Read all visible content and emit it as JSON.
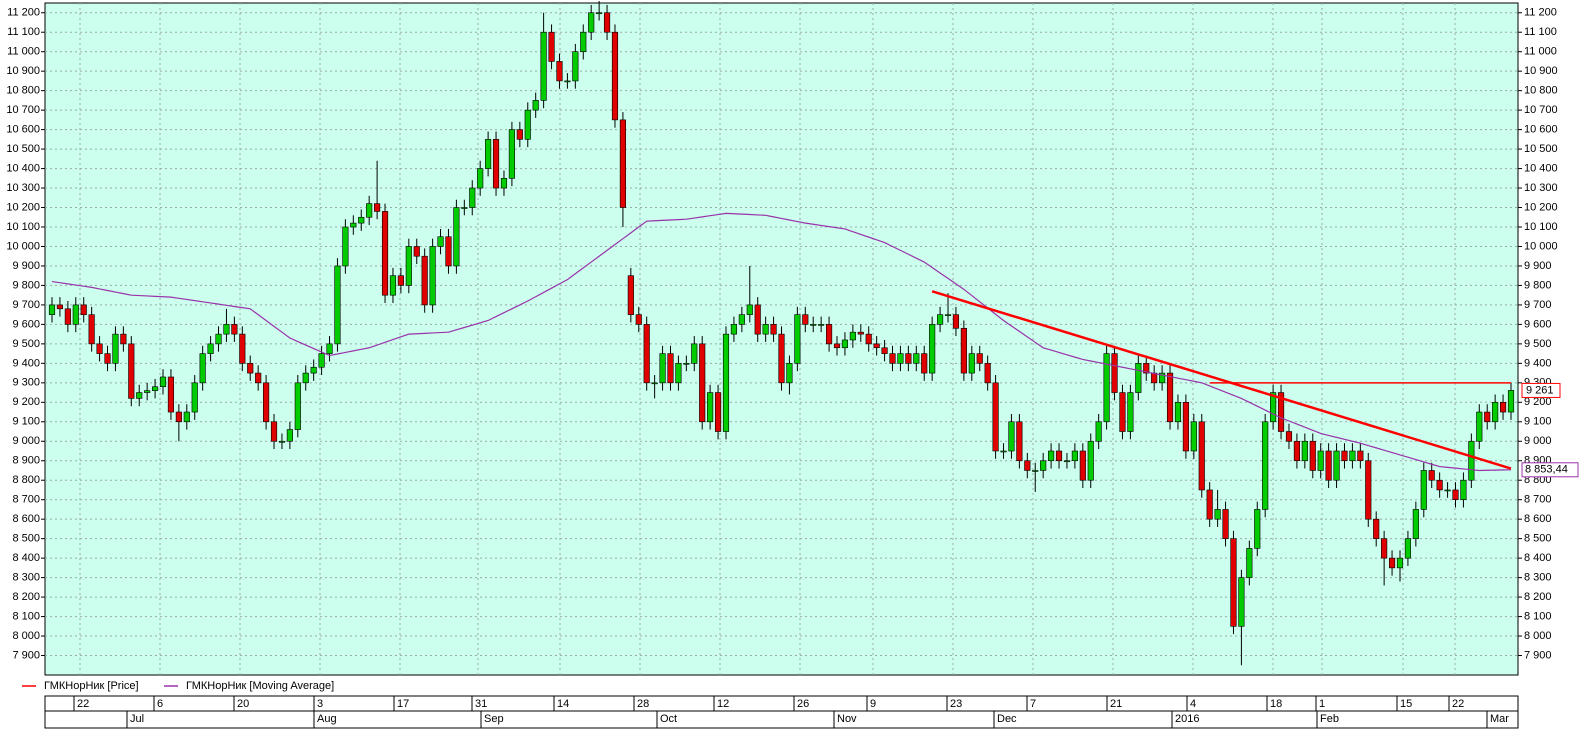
{
  "chart_data": {
    "type": "candlestick",
    "series": [
      {
        "name": "ГМКНорНик [Price]",
        "color": "#ff0000",
        "up_color": "#00cc00",
        "down_color": "#e00000",
        "last_label": "9 261",
        "open": [
          9650,
          9700,
          9680,
          9600,
          9700,
          9650,
          9500,
          9450,
          9400,
          9550,
          9500,
          9220,
          9250,
          9260,
          9280,
          9330,
          9150,
          9100,
          9150,
          9300,
          9450,
          9500,
          9550,
          9600,
          9550,
          9400,
          9350,
          9300,
          9100,
          9000,
          9000,
          9060,
          9300,
          9350,
          9380,
          9450,
          9500,
          9900,
          10100,
          10120,
          10150,
          10220,
          10180,
          9750,
          9850,
          9800,
          10000,
          9950,
          9700,
          10000,
          10050,
          9900,
          10200,
          10200,
          10300,
          10400,
          10550,
          10300,
          10350,
          10600,
          10550,
          10700,
          10750,
          11100,
          10950,
          10850,
          10850,
          11000,
          11100,
          11200,
          11200,
          11100,
          10650,
          9850,
          9650,
          9600,
          9300,
          9300,
          9450,
          9300,
          9400,
          9400,
          9500,
          9100,
          9250,
          9050,
          9550,
          9600,
          9650,
          9700,
          9550,
          9600,
          9550,
          9300,
          9400,
          9650,
          9600,
          9600,
          9600,
          9500,
          9480,
          9520,
          9560,
          9550,
          9500,
          9480,
          9450,
          9400,
          9450,
          9400,
          9450,
          9350,
          9600,
          9650,
          9650,
          9580,
          9350,
          9450,
          9400,
          9300,
          8950,
          8950,
          9100,
          8900,
          8850,
          8850,
          8900,
          8950,
          8900,
          8900,
          8950,
          8800,
          9000,
          9100,
          9450,
          9250,
          9050,
          9250,
          9400,
          9350,
          9300,
          9350,
          9100,
          9200,
          8950,
          9100,
          8750,
          8600,
          8650,
          8500,
          8050,
          8300,
          8450,
          8650,
          9100,
          9250,
          9050,
          9000,
          8900,
          9000,
          8850,
          8950,
          8800,
          8950,
          8900,
          8950,
          8900,
          8600,
          8500,
          8400,
          8350,
          8400,
          8500,
          8650,
          8850,
          8800,
          8750,
          8750,
          8700,
          8800,
          9000,
          9150,
          9100,
          9200,
          9150
        ],
        "high": [
          9740,
          9740,
          9720,
          9740,
          9740,
          9690,
          9540,
          9490,
          9590,
          9590,
          9540,
          9290,
          9300,
          9320,
          9370,
          9370,
          9190,
          9190,
          9340,
          9490,
          9540,
          9590,
          9680,
          9640,
          9590,
          9440,
          9390,
          9340,
          9140,
          9040,
          9100,
          9340,
          9390,
          9420,
          9490,
          9540,
          9940,
          10140,
          10160,
          10190,
          10260,
          10440,
          10220,
          9890,
          9890,
          10040,
          10040,
          9990,
          10040,
          10090,
          10090,
          10240,
          10240,
          10340,
          10440,
          10590,
          10590,
          10390,
          10640,
          10640,
          10740,
          10790,
          11200,
          11140,
          10990,
          10890,
          11040,
          11140,
          11240,
          11260,
          11240,
          11140,
          10690,
          9890,
          9690,
          9640,
          9340,
          9490,
          9490,
          9440,
          9440,
          9540,
          9540,
          9290,
          9290,
          9590,
          9640,
          9690,
          9900,
          9740,
          9640,
          9640,
          9590,
          9440,
          9690,
          9690,
          9640,
          9640,
          9640,
          9540,
          9560,
          9600,
          9600,
          9590,
          9540,
          9520,
          9490,
          9490,
          9490,
          9490,
          9490,
          9640,
          9690,
          9760,
          9690,
          9620,
          9490,
          9490,
          9440,
          9340,
          8990,
          9140,
          9140,
          8940,
          8890,
          8940,
          8990,
          8990,
          8940,
          8990,
          8990,
          9040,
          9140,
          9490,
          9490,
          9290,
          9290,
          9440,
          9440,
          9390,
          9390,
          9390,
          9240,
          9240,
          9140,
          9140,
          8790,
          8750,
          8690,
          8540,
          8340,
          8490,
          8690,
          9140,
          9290,
          9290,
          9090,
          9040,
          9040,
          9040,
          8990,
          8990,
          8990,
          8990,
          8990,
          8990,
          8940,
          8640,
          8540,
          8440,
          8440,
          8540,
          8690,
          8890,
          8890,
          8840,
          8790,
          8790,
          8840,
          9040,
          9190,
          9190,
          9240,
          9240,
          9300
        ],
        "low": [
          9610,
          9640,
          9560,
          9560,
          9610,
          9460,
          9410,
          9360,
          9360,
          9460,
          9180,
          9180,
          9210,
          9220,
          9240,
          9110,
          9000,
          9060,
          9110,
          9260,
          9410,
          9460,
          9510,
          9510,
          9360,
          9310,
          9260,
          9060,
          8960,
          8960,
          8960,
          9020,
          9260,
          9310,
          9340,
          9410,
          9460,
          9860,
          10060,
          10080,
          10110,
          10140,
          9710,
          9710,
          9760,
          9760,
          9910,
          9660,
          9660,
          9960,
          9860,
          9860,
          10160,
          10160,
          10260,
          10360,
          10260,
          10260,
          10310,
          10510,
          10510,
          10660,
          10710,
          10910,
          10810,
          10810,
          10810,
          10960,
          11060,
          11160,
          11060,
          10610,
          10100,
          9610,
          9560,
          9260,
          9220,
          9260,
          9260,
          9260,
          9360,
          9360,
          9060,
          9060,
          9010,
          9010,
          9510,
          9560,
          9610,
          9510,
          9510,
          9510,
          9260,
          9240,
          9360,
          9560,
          9560,
          9560,
          9460,
          9440,
          9440,
          9480,
          9510,
          9460,
          9440,
          9410,
          9360,
          9360,
          9360,
          9360,
          9310,
          9310,
          9560,
          9610,
          9540,
          9310,
          9310,
          9360,
          9260,
          8910,
          8910,
          8910,
          8860,
          8810,
          8740,
          8810,
          8860,
          8860,
          8860,
          8860,
          8760,
          8760,
          8960,
          9060,
          9210,
          9010,
          9010,
          9210,
          9310,
          9260,
          9260,
          9060,
          9060,
          8910,
          8910,
          8710,
          8560,
          8560,
          8460,
          8010,
          7850,
          8260,
          8410,
          8610,
          9060,
          9010,
          8960,
          8860,
          8860,
          8810,
          8810,
          8760,
          8760,
          8860,
          8860,
          8860,
          8560,
          8460,
          8260,
          8310,
          8280,
          8360,
          8460,
          8610,
          8760,
          8710,
          8710,
          8660,
          8660,
          8760,
          8960,
          9060,
          9060,
          9110,
          9110
        ],
        "close": [
          9700,
          9680,
          9600,
          9700,
          9650,
          9500,
          9450,
          9400,
          9550,
          9500,
          9220,
          9250,
          9260,
          9280,
          9330,
          9150,
          9100,
          9150,
          9300,
          9450,
          9500,
          9550,
          9600,
          9550,
          9400,
          9350,
          9300,
          9100,
          9000,
          9000,
          9060,
          9300,
          9350,
          9380,
          9450,
          9500,
          9900,
          10100,
          10120,
          10150,
          10220,
          10180,
          9750,
          9850,
          9800,
          10000,
          9950,
          9700,
          10000,
          10050,
          9900,
          10200,
          10200,
          10300,
          10400,
          10550,
          10300,
          10350,
          10600,
          10550,
          10700,
          10750,
          11100,
          10950,
          10850,
          10850,
          11000,
          11100,
          11200,
          11200,
          11100,
          10650,
          10200,
          9650,
          9600,
          9300,
          9300,
          9450,
          9300,
          9400,
          9400,
          9500,
          9100,
          9250,
          9050,
          9550,
          9600,
          9650,
          9700,
          9550,
          9600,
          9550,
          9300,
          9400,
          9650,
          9600,
          9600,
          9600,
          9500,
          9480,
          9520,
          9560,
          9550,
          9500,
          9480,
          9450,
          9400,
          9450,
          9400,
          9450,
          9350,
          9600,
          9650,
          9650,
          9580,
          9350,
          9450,
          9400,
          9300,
          8950,
          8950,
          9100,
          8900,
          8850,
          8850,
          8900,
          8950,
          8900,
          8900,
          8950,
          8800,
          9000,
          9100,
          9450,
          9250,
          9050,
          9250,
          9400,
          9350,
          9300,
          9350,
          9100,
          9200,
          8950,
          9100,
          8750,
          8600,
          8650,
          8500,
          8050,
          8300,
          8450,
          8650,
          9100,
          9250,
          9050,
          9000,
          8900,
          9000,
          8850,
          8950,
          8800,
          8950,
          8900,
          8950,
          8900,
          8600,
          8500,
          8400,
          8350,
          8400,
          8500,
          8650,
          8850,
          8800,
          8750,
          8750,
          8700,
          8800,
          9000,
          9150,
          9100,
          9200,
          9150,
          9261
        ]
      },
      {
        "name": "ГМКНорНик [Moving Average]",
        "color": "#9933aa",
        "last_label": "8 853,44",
        "values": [
          9820,
          9814,
          9808,
          9802,
          9796,
          9790,
          9782,
          9774,
          9766,
          9758,
          9750,
          9748,
          9746,
          9744,
          9742,
          9740,
          9734,
          9728,
          9722,
          9716,
          9710,
          9704,
          9698,
          9692,
          9686,
          9680,
          9650,
          9620,
          9590,
          9560,
          9530,
          9512,
          9494,
          9476,
          9458,
          9440,
          9448,
          9456,
          9464,
          9472,
          9480,
          9494,
          9508,
          9522,
          9536,
          9550,
          9552,
          9554,
          9556,
          9558,
          9560,
          9572,
          9584,
          9596,
          9608,
          9620,
          9640,
          9660,
          9680,
          9700,
          9720,
          9742,
          9764,
          9786,
          9808,
          9830,
          9860,
          9890,
          9920,
          9950,
          9980,
          10010,
          10040,
          10070,
          10100,
          10130,
          10132,
          10134,
          10136,
          10138,
          10140,
          10146,
          10152,
          10158,
          10164,
          10170,
          10168,
          10166,
          10164,
          10162,
          10160,
          10152,
          10144,
          10136,
          10128,
          10120,
          10114,
          10108,
          10102,
          10096,
          10090,
          10076,
          10062,
          10048,
          10034,
          10020,
          10000,
          9980,
          9960,
          9940,
          9920,
          9892,
          9864,
          9836,
          9808,
          9780,
          9748,
          9716,
          9684,
          9652,
          9620,
          9592,
          9564,
          9536,
          9508,
          9480,
          9468,
          9456,
          9444,
          9432,
          9420,
          9412,
          9404,
          9396,
          9388,
          9380,
          9372,
          9364,
          9356,
          9348,
          9340,
          9332,
          9324,
          9316,
          9308,
          9300,
          9284,
          9268,
          9252,
          9236,
          9220,
          9200,
          9180,
          9160,
          9140,
          9120,
          9104,
          9088,
          9072,
          9056,
          9040,
          9030,
          9020,
          9010,
          9000,
          8990,
          8978,
          8966,
          8954,
          8942,
          8930,
          8918,
          8906,
          8894,
          8882,
          8870,
          8866,
          8862,
          8858,
          8854,
          8850,
          8851,
          8852,
          8853,
          8853.44
        ]
      }
    ],
    "trendlines": [
      {
        "color": "#ff0000",
        "x": [
          111,
          184
        ],
        "values": [
          9770,
          8860
        ]
      },
      {
        "color": "#ff0000",
        "x": [
          146,
          184
        ],
        "values": [
          9300,
          9300
        ]
      }
    ],
    "x_day_labels": [
      "22",
      "6",
      "20",
      "3",
      "17",
      "31",
      "14",
      "28",
      "12",
      "26",
      "9",
      "23",
      "7",
      "21",
      "4",
      "18",
      "1",
      "15",
      "22"
    ],
    "x_month_labels": [
      "Jul",
      "Aug",
      "Sep",
      "Oct",
      "Nov",
      "Dec",
      "2016",
      "Feb",
      "Mar"
    ],
    "ylim": [
      7800,
      11250
    ],
    "yticks": [
      {
        "value": 7900,
        "label": "7 900"
      },
      {
        "value": 8000,
        "label": "8 000"
      },
      {
        "value": 8100,
        "label": "8 100"
      },
      {
        "value": 8200,
        "label": "8 200"
      },
      {
        "value": 8300,
        "label": "8 300"
      },
      {
        "value": 8400,
        "label": "8 400"
      },
      {
        "value": 8500,
        "label": "8 500"
      },
      {
        "value": 8600,
        "label": "8 600"
      },
      {
        "value": 8700,
        "label": "8 700"
      },
      {
        "value": 8800,
        "label": "8 800"
      },
      {
        "value": 8900,
        "label": "8 900"
      },
      {
        "value": 9000,
        "label": "9 000"
      },
      {
        "value": 9100,
        "label": "9 100"
      },
      {
        "value": 9200,
        "label": "9 200"
      },
      {
        "value": 9300,
        "label": "9 300"
      },
      {
        "value": 9400,
        "label": "9 400"
      },
      {
        "value": 9500,
        "label": "9 500"
      },
      {
        "value": 9600,
        "label": "9 600"
      },
      {
        "value": 9700,
        "label": "9 700"
      },
      {
        "value": 9800,
        "label": "9 800"
      },
      {
        "value": 9900,
        "label": "9 900"
      },
      {
        "value": 10000,
        "label": "10 000"
      },
      {
        "value": 10100,
        "label": "10 100"
      },
      {
        "value": 10200,
        "label": "10 200"
      },
      {
        "value": 10300,
        "label": "10 300"
      },
      {
        "value": 10400,
        "label": "10 400"
      },
      {
        "value": 10500,
        "label": "10 500"
      },
      {
        "value": 10600,
        "label": "10 600"
      },
      {
        "value": 10700,
        "label": "10 700"
      },
      {
        "value": 10800,
        "label": "10 800"
      },
      {
        "value": 10900,
        "label": "10 900"
      },
      {
        "value": 11000,
        "label": "11 000"
      },
      {
        "value": 11100,
        "label": "11 100"
      },
      {
        "value": 11200,
        "label": "11 200"
      }
    ],
    "grid": true
  }
}
